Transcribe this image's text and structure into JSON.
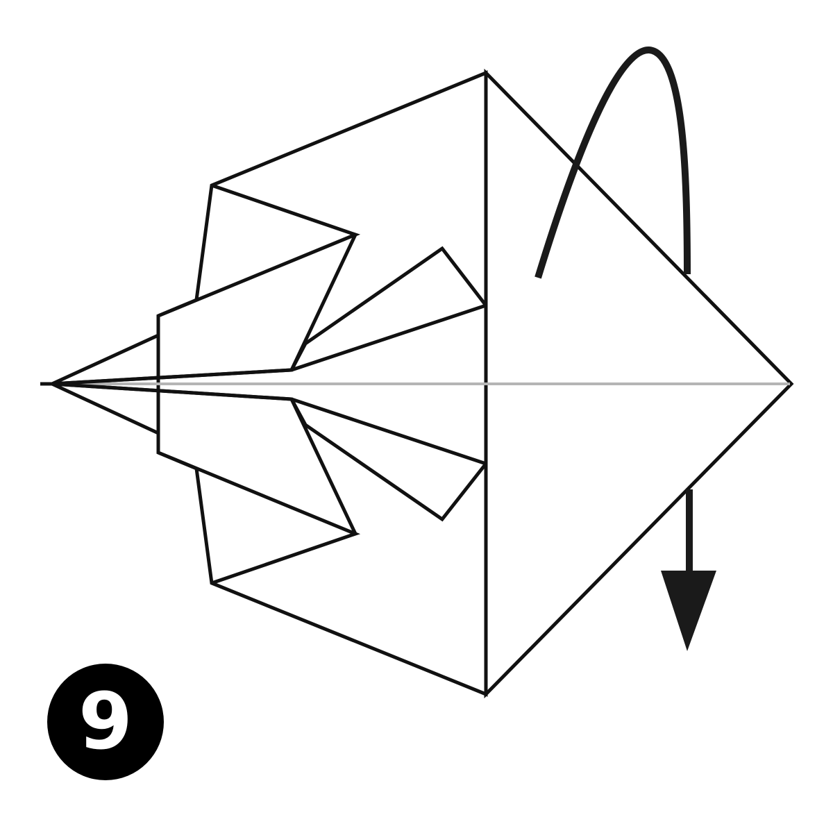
{
  "step": {
    "number": "9"
  }
}
